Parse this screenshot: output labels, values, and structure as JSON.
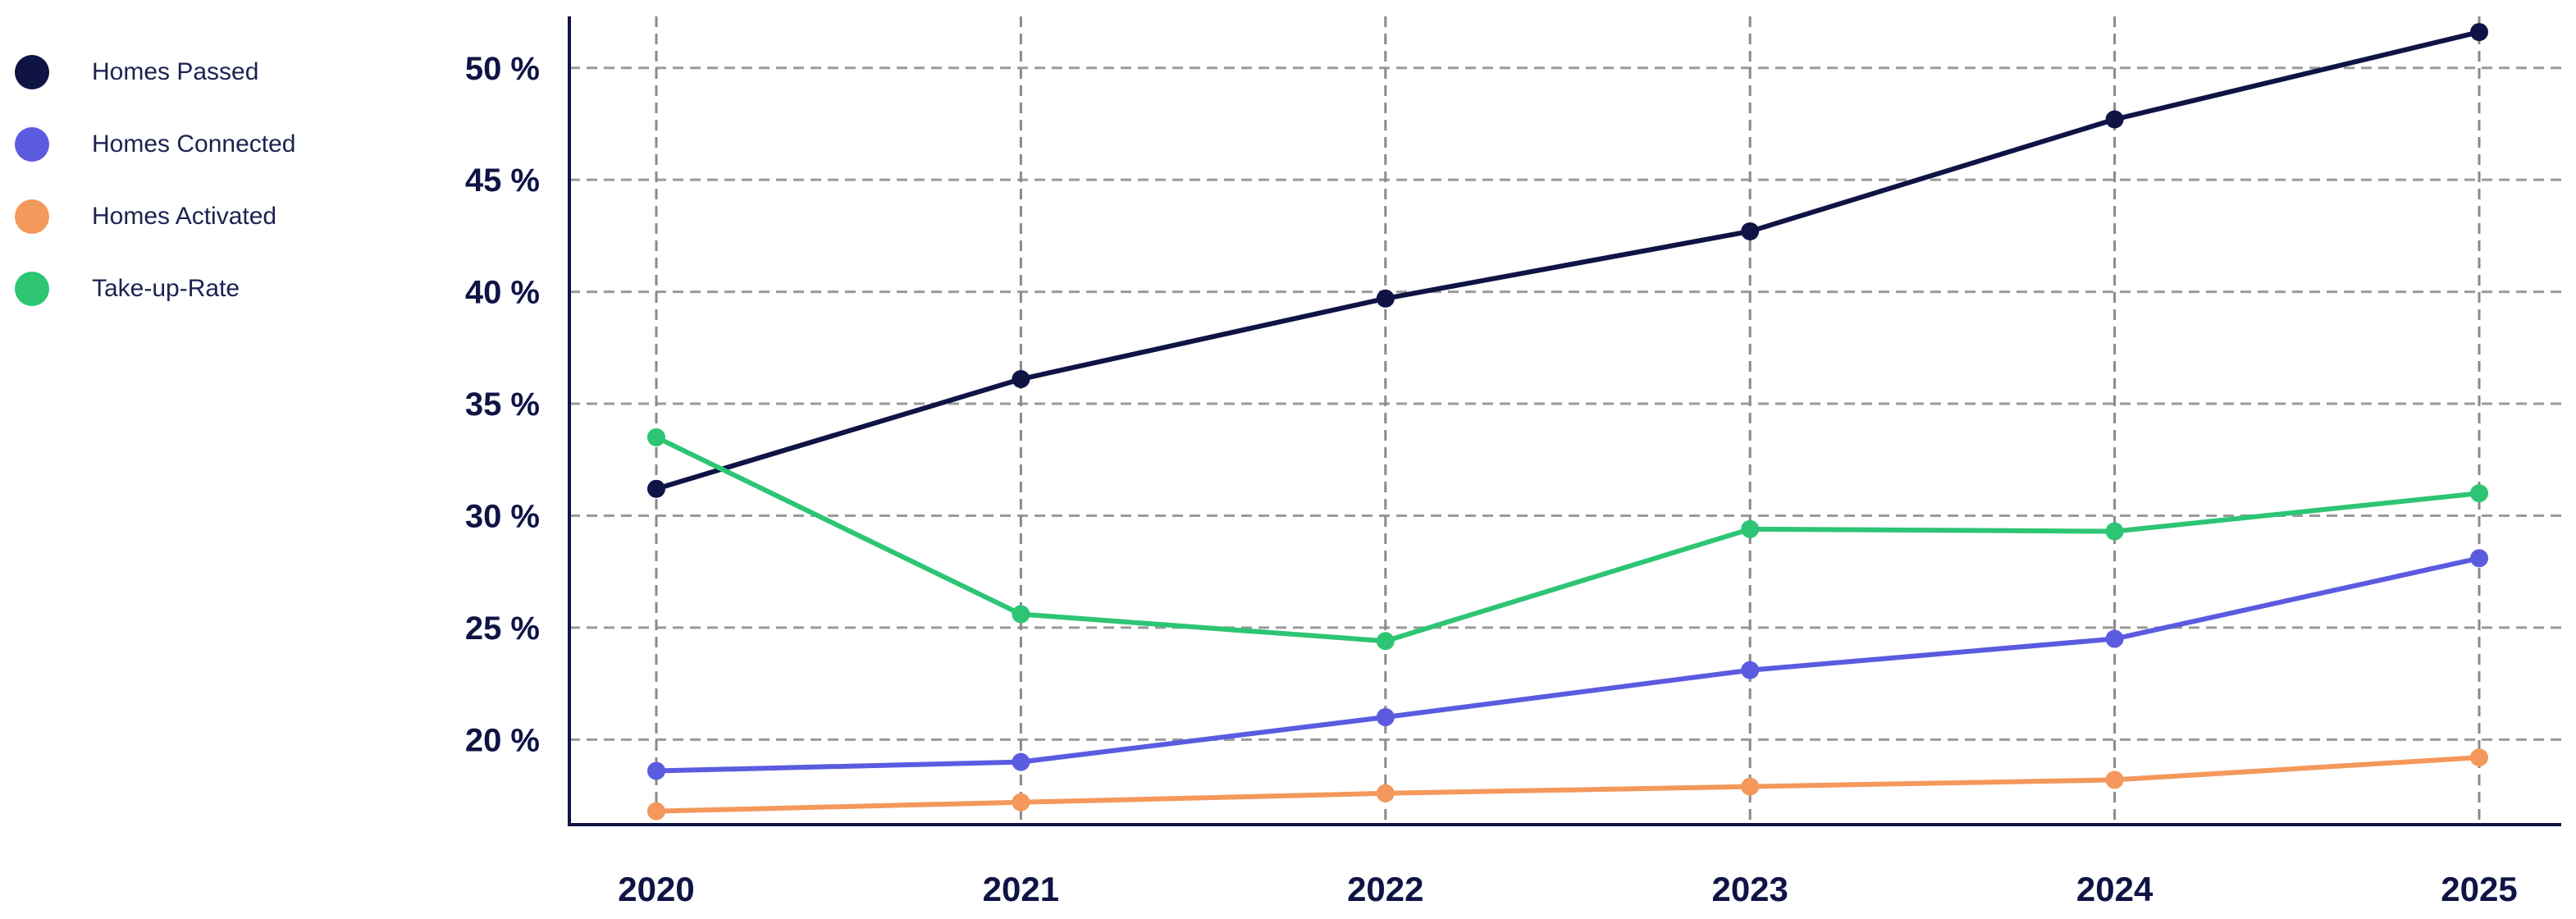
{
  "chart_data": {
    "type": "line",
    "title": "",
    "xlabel": "",
    "ylabel": "",
    "categories": [
      "2020",
      "2021",
      "2022",
      "2023",
      "2024",
      "2025"
    ],
    "y_ticks": [
      20,
      25,
      30,
      35,
      40,
      45,
      50
    ],
    "y_tick_labels": [
      "20 %",
      "25 %",
      "30 %",
      "35 %",
      "40 %",
      "45 %",
      "50 %"
    ],
    "ylim": [
      16.2,
      52.3
    ],
    "grid": true,
    "legend_position": "top-left",
    "series": [
      {
        "name": "Homes Passed",
        "color": "#0f1445",
        "values": [
          31.2,
          36.1,
          39.7,
          42.7,
          47.7,
          51.6
        ]
      },
      {
        "name": "Homes Connected",
        "color": "#5b5be0",
        "values": [
          18.6,
          19.0,
          21.0,
          23.1,
          24.5,
          28.1
        ]
      },
      {
        "name": "Homes Activated",
        "color": "#f4985c",
        "values": [
          16.8,
          17.2,
          17.6,
          17.9,
          18.2,
          19.2
        ]
      },
      {
        "name": "Take-up-Rate",
        "color": "#2dc574",
        "values": [
          33.5,
          25.6,
          24.4,
          29.4,
          29.3,
          31.0
        ]
      }
    ]
  }
}
